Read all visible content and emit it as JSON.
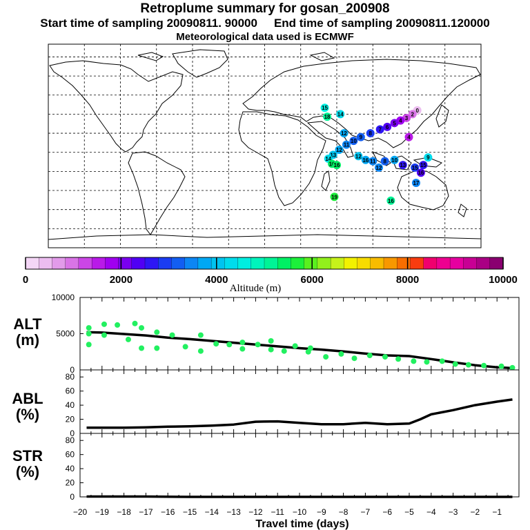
{
  "title": "Retroplume summary for gosan_200908",
  "start_label": "Start time of sampling 20090811. 90000",
  "end_label": "End time of sampling 20090811.120000",
  "met_label": "Meteorological data used is ECMWF",
  "chart_data": [
    {
      "type": "map-scatter",
      "name": "retroplume-map",
      "markers": [
        {
          "lon": 127,
          "lat": 33,
          "label": "0",
          "alt": 500
        },
        {
          "lon": 123,
          "lat": 30,
          "label": "2",
          "alt": 900
        },
        {
          "lon": 118,
          "lat": 27,
          "label": "3",
          "alt": 1300
        },
        {
          "lon": 113,
          "lat": 25,
          "label": "4",
          "alt": 1700
        },
        {
          "lon": 108,
          "lat": 23,
          "label": "5",
          "alt": 2100
        },
        {
          "lon": 102,
          "lat": 20,
          "label": "6",
          "alt": 2300
        },
        {
          "lon": 96,
          "lat": 18,
          "label": "7",
          "alt": 2600
        },
        {
          "lon": 88,
          "lat": 15,
          "label": "8",
          "alt": 2900
        },
        {
          "lon": 80,
          "lat": 12,
          "label": "9",
          "alt": 3100
        },
        {
          "lon": 74,
          "lat": 9,
          "label": "10",
          "alt": 3300
        },
        {
          "lon": 68,
          "lat": 6,
          "label": "11",
          "alt": 3500
        },
        {
          "lon": 62,
          "lat": 2,
          "label": "12",
          "alt": 3800
        },
        {
          "lon": 57,
          "lat": -2,
          "label": "13",
          "alt": 4000
        },
        {
          "lon": 53,
          "lat": -5,
          "label": "14",
          "alt": 4300
        },
        {
          "lon": 56,
          "lat": -9,
          "label": "16",
          "alt": 5300
        },
        {
          "lon": 60,
          "lat": -10,
          "label": "16",
          "alt": 5500
        },
        {
          "lon": 50,
          "lat": 35,
          "label": "15",
          "alt": 4700
        },
        {
          "lon": 63,
          "lat": 30,
          "label": "14",
          "alt": 4400
        },
        {
          "lon": 52,
          "lat": 28,
          "label": "18",
          "alt": 5200
        },
        {
          "lon": 66,
          "lat": 15,
          "label": "12",
          "alt": 3800
        },
        {
          "lon": 78,
          "lat": -3,
          "label": "12",
          "alt": 3900
        },
        {
          "lon": 84,
          "lat": -6,
          "label": "16",
          "alt": 3700
        },
        {
          "lon": 90,
          "lat": -7,
          "label": "11",
          "alt": 3500
        },
        {
          "lon": 95,
          "lat": -12,
          "label": "12",
          "alt": 3600
        },
        {
          "lon": 100,
          "lat": -7,
          "label": "8",
          "alt": 3200
        },
        {
          "lon": 108,
          "lat": -6,
          "label": "10",
          "alt": 3700
        },
        {
          "lon": 115,
          "lat": -10,
          "label": "13",
          "alt": 2700
        },
        {
          "lon": 125,
          "lat": -12,
          "label": "15",
          "alt": 3000
        },
        {
          "lon": 132,
          "lat": -10,
          "label": "15",
          "alt": 2500
        },
        {
          "lon": 130,
          "lat": -16,
          "label": "16",
          "alt": 2400
        },
        {
          "lon": 126,
          "lat": -24,
          "label": "17",
          "alt": 3600
        },
        {
          "lon": 136,
          "lat": -4,
          "label": "9",
          "alt": 4200
        },
        {
          "lon": 120,
          "lat": 12,
          "label": "4",
          "alt": 1600
        },
        {
          "lon": 58,
          "lat": -35,
          "label": "19",
          "alt": 5800
        },
        {
          "lon": 105,
          "lat": -38,
          "label": "16",
          "alt": 5100
        }
      ]
    },
    {
      "type": "colorbar",
      "name": "altitude-colorbar",
      "xlabel": "Altitude (m)",
      "range": [
        0,
        10000
      ],
      "tick_labels": [
        "0",
        "2000",
        "4000",
        "6000",
        "8000",
        "10000"
      ],
      "colors": [
        "#f4d6f6",
        "#ecbdf0",
        "#e29bea",
        "#d974e6",
        "#cb46e6",
        "#b91ae8",
        "#a000f0",
        "#7a00f0",
        "#5000f4",
        "#2e16f4",
        "#1a3cf2",
        "#125ef2",
        "#0c86f4",
        "#00a8f4",
        "#00c4f0",
        "#00dcec",
        "#00eee0",
        "#00f4bc",
        "#00f496",
        "#00f064",
        "#1cf03a",
        "#5af01e",
        "#92f01c",
        "#c6f21a",
        "#f2f200",
        "#f8dc00",
        "#f8bc00",
        "#f89800",
        "#f86e00",
        "#f83c10",
        "#f0006e",
        "#ee0090",
        "#e600a0",
        "#c80094",
        "#aa0084",
        "#8a0070"
      ]
    },
    {
      "type": "scatter+line",
      "name": "alt-panel",
      "ylabel": "ALT\n(m)",
      "xlim": [
        -20,
        0
      ],
      "ylim": [
        0,
        10000
      ],
      "yticks": [
        "10000",
        "5000",
        "0"
      ],
      "series": [
        {
          "name": "mean altitude",
          "x": [
            -19.7,
            -19,
            -18,
            -17,
            -16,
            -15,
            -14,
            -13,
            -12,
            -11,
            -10,
            -9,
            -8,
            -7,
            -6,
            -5,
            -4,
            -3,
            -2,
            -1,
            -0.3
          ],
          "y": [
            5200,
            5150,
            4950,
            4750,
            4450,
            4250,
            4000,
            3750,
            3500,
            3250,
            3000,
            2800,
            2550,
            2250,
            2000,
            1900,
            1500,
            1050,
            650,
            350,
            250
          ]
        },
        {
          "name": "particle altitudes",
          "x": [
            -19.6,
            -19.6,
            -19.6,
            -18.9,
            -18.9,
            -18.3,
            -17.8,
            -17.5,
            -17.2,
            -17.2,
            -16.5,
            -16.5,
            -15.8,
            -15.2,
            -14.5,
            -14.5,
            -13.8,
            -13.2,
            -12.6,
            -12.6,
            -11.9,
            -11.3,
            -11.3,
            -10.7,
            -10.2,
            -9.6,
            -9.5,
            -8.8,
            -8.1,
            -7.5,
            -6.8,
            -6.1,
            -5.5,
            -4.8,
            -4.2,
            -3.5,
            -2.9,
            -2.3,
            -1.6,
            -0.8,
            -0.3
          ],
          "y": [
            5800,
            5000,
            3500,
            6300,
            4800,
            6200,
            4200,
            6400,
            5800,
            3000,
            5200,
            3000,
            4800,
            3200,
            4800,
            2600,
            3600,
            3500,
            3800,
            2900,
            3500,
            4000,
            2800,
            2600,
            3300,
            2500,
            3000,
            1800,
            2200,
            1600,
            2000,
            1800,
            1500,
            1200,
            1100,
            1200,
            800,
            700,
            600,
            500,
            300
          ]
        }
      ]
    },
    {
      "type": "line",
      "name": "abl-panel",
      "ylabel": "ABL\n(%)",
      "xlim": [
        -20,
        0
      ],
      "ylim": [
        0,
        90
      ],
      "yticks": [
        "80",
        "60",
        "40",
        "20",
        "0"
      ],
      "series": [
        {
          "name": "ABL fraction",
          "x": [
            -19.7,
            -19,
            -18,
            -17,
            -16,
            -15,
            -14,
            -13,
            -12,
            -11,
            -10,
            -9,
            -8,
            -7,
            -6,
            -5,
            -4.5,
            -4,
            -3,
            -2,
            -1,
            -0.3
          ],
          "y": [
            8,
            8,
            8,
            8.5,
            9.5,
            10,
            11,
            12.5,
            16.5,
            17,
            15,
            13,
            13,
            15,
            13,
            14,
            20,
            27,
            33,
            40,
            45,
            48
          ]
        }
      ]
    },
    {
      "type": "line",
      "name": "str-panel",
      "ylabel": "STR\n(%)",
      "xlim": [
        -20,
        0
      ],
      "ylim": [
        0,
        90
      ],
      "yticks": [
        "80",
        "60",
        "40",
        "20",
        "0"
      ],
      "xlabel": "Travel time (days)",
      "xticks": [
        "−20",
        "−19",
        "−18",
        "−17",
        "−16",
        "−15",
        "−14",
        "−13",
        "−12",
        "−11",
        "−10",
        "−9",
        "−8",
        "−7",
        "−6",
        "−5",
        "−4",
        "−3",
        "−2",
        "−1"
      ],
      "series": [
        {
          "name": "stratospheric fraction",
          "x": [
            -19.7,
            -17,
            -15,
            -10,
            -5,
            -0.3
          ],
          "y": [
            0.5,
            0.5,
            0,
            0,
            0,
            0
          ]
        }
      ]
    }
  ]
}
